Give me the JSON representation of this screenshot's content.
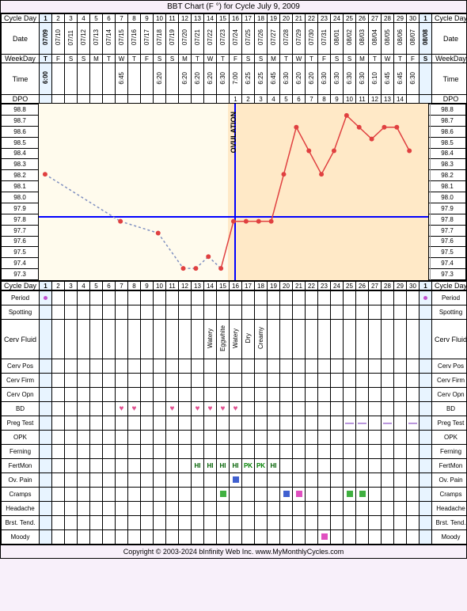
{
  "title": "BBT Chart (F °) for Cycle July 9, 2009",
  "footer": "Copyright © 2003-2024 bInfinity Web Inc.   www.MyMonthlyCycles.com",
  "labels": {
    "cycleDay": "Cycle Day",
    "date": "Date",
    "weekday": "WeekDay",
    "time": "Time",
    "dpo": "DPO",
    "period": "Period",
    "spotting": "Spotting",
    "cervFluid": "Cerv Fluid",
    "cervPos": "Cerv Pos",
    "cervFirm": "Cerv Firm",
    "cervOpn": "Cerv Opn",
    "bd": "BD",
    "pregTest": "Preg Test",
    "opk": "OPK",
    "ferning": "Ferning",
    "fertMon": "FertMon",
    "ovPain": "Ov. Pain",
    "cramps": "Cramps",
    "headache": "Headache",
    "brstTend": "Brst. Tend.",
    "moody": "Moody"
  },
  "days": [
    {
      "cd": 1,
      "date": "07/09",
      "wd": "T",
      "time": "6:00",
      "dpo": "",
      "temp": 98.2
    },
    {
      "cd": 2,
      "date": "07/10",
      "wd": "F",
      "time": "",
      "dpo": "",
      "temp": null
    },
    {
      "cd": 3,
      "date": "07/11",
      "wd": "S",
      "time": "",
      "dpo": "",
      "temp": null
    },
    {
      "cd": 4,
      "date": "07/12",
      "wd": "S",
      "time": "",
      "dpo": "",
      "temp": null
    },
    {
      "cd": 5,
      "date": "07/13",
      "wd": "M",
      "time": "",
      "dpo": "",
      "temp": null
    },
    {
      "cd": 6,
      "date": "07/14",
      "wd": "T",
      "time": "",
      "dpo": "",
      "temp": null
    },
    {
      "cd": 7,
      "date": "07/15",
      "wd": "W",
      "time": "6:45",
      "dpo": "",
      "temp": 97.8
    },
    {
      "cd": 8,
      "date": "07/16",
      "wd": "T",
      "time": "",
      "dpo": "",
      "temp": null
    },
    {
      "cd": 9,
      "date": "07/17",
      "wd": "F",
      "time": "",
      "dpo": "",
      "temp": null
    },
    {
      "cd": 10,
      "date": "07/18",
      "wd": "S",
      "time": "6:20",
      "dpo": "",
      "temp": 97.7
    },
    {
      "cd": 11,
      "date": "07/19",
      "wd": "S",
      "time": "",
      "dpo": "",
      "temp": null
    },
    {
      "cd": 12,
      "date": "07/20",
      "wd": "M",
      "time": "6:20",
      "dpo": "",
      "temp": 97.4
    },
    {
      "cd": 13,
      "date": "07/21",
      "wd": "T",
      "time": "6:20",
      "dpo": "",
      "temp": 97.4
    },
    {
      "cd": 14,
      "date": "07/22",
      "wd": "W",
      "time": "6:20",
      "dpo": "",
      "temp": 97.5
    },
    {
      "cd": 15,
      "date": "07/23",
      "wd": "T",
      "time": "6:30",
      "dpo": "",
      "temp": 97.4
    },
    {
      "cd": 16,
      "date": "07/24",
      "wd": "F",
      "time": "7:00",
      "dpo": "1",
      "temp": 97.8
    },
    {
      "cd": 17,
      "date": "07/25",
      "wd": "S",
      "time": "6:25",
      "dpo": "2",
      "temp": 97.8
    },
    {
      "cd": 18,
      "date": "07/26",
      "wd": "S",
      "time": "6:25",
      "dpo": "3",
      "temp": 97.8
    },
    {
      "cd": 19,
      "date": "07/27",
      "wd": "M",
      "time": "6:45",
      "dpo": "4",
      "temp": 97.8
    },
    {
      "cd": 20,
      "date": "07/28",
      "wd": "T",
      "time": "6:30",
      "dpo": "5",
      "temp": 98.2
    },
    {
      "cd": 21,
      "date": "07/29",
      "wd": "W",
      "time": "6:20",
      "dpo": "6",
      "temp": 98.6
    },
    {
      "cd": 22,
      "date": "07/30",
      "wd": "T",
      "time": "6:20",
      "dpo": "7",
      "temp": 98.4
    },
    {
      "cd": 23,
      "date": "07/31",
      "wd": "F",
      "time": "6:30",
      "dpo": "8",
      "temp": 98.2
    },
    {
      "cd": 24,
      "date": "08/01",
      "wd": "S",
      "time": "6:30",
      "dpo": "9",
      "temp": 98.4
    },
    {
      "cd": 25,
      "date": "08/02",
      "wd": "S",
      "time": "6:30",
      "dpo": "10",
      "temp": 98.7
    },
    {
      "cd": 26,
      "date": "08/03",
      "wd": "M",
      "time": "6:30",
      "dpo": "11",
      "temp": 98.6
    },
    {
      "cd": 27,
      "date": "08/04",
      "wd": "T",
      "time": "6:10",
      "dpo": "12",
      "temp": 98.5
    },
    {
      "cd": 28,
      "date": "08/05",
      "wd": "W",
      "time": "6:45",
      "dpo": "13",
      "temp": 98.6
    },
    {
      "cd": 29,
      "date": "08/06",
      "wd": "T",
      "time": "6:45",
      "dpo": "14",
      "temp": 98.6
    },
    {
      "cd": 30,
      "date": "08/07",
      "wd": "F",
      "time": "6:30",
      "dpo": "",
      "temp": 98.4
    },
    {
      "cd": 1,
      "date": "08/08",
      "wd": "S",
      "time": "",
      "dpo": "",
      "temp": null
    }
  ],
  "tempScale": {
    "min": 97.3,
    "max": 98.8,
    "steps": [
      "98.8",
      "98.7",
      "98.6",
      "98.5",
      "98.4",
      "98.3",
      "98.2",
      "98.1",
      "98.0",
      "97.9",
      "97.8",
      "97.7",
      "97.6",
      "97.5",
      "97.4",
      "97.3"
    ]
  },
  "coverline": 97.85,
  "ovulation_day_index": 15,
  "shade": {
    "follicular_end": 14,
    "luteal_start": 15
  },
  "colors": {
    "line_solid": "#e04040",
    "line_dashed": "#8090c0",
    "dot": "#e04040",
    "coverline": "#0000ff",
    "shade_foll": "#fffbed",
    "shade_lut": "#ffe9c7",
    "period": "#c050d0",
    "heart": "#e05090",
    "green": "#40b040",
    "blue": "#4060d0",
    "pink": "#e050c0",
    "preg_neg": "#8040c0"
  },
  "cervFluid": {
    "13": "Watery",
    "14": "Eggwhite",
    "15": "Watery",
    "16": "Dry",
    "17": "Creamy"
  },
  "bd": {
    "6": true,
    "7": true,
    "10": true,
    "12": true,
    "13": true,
    "14": true,
    "15": true
  },
  "period": {
    "0": "light",
    "30": "spot"
  },
  "pregTest": {
    "24": "neg",
    "25": "neg",
    "27": "neg",
    "29": "neg"
  },
  "fertMon": {
    "12": "HI",
    "13": "HI",
    "14": "HI",
    "15": "HI",
    "16": "PK",
    "17": "PK",
    "18": "HI"
  },
  "ovPain": {
    "15": "#4060d0"
  },
  "cramps": {
    "14": "#40b040",
    "19": "#4060d0",
    "20": "#e050c0",
    "24": "#40b040",
    "25": "#40b040"
  },
  "moody": {
    "22": "#e050c0"
  }
}
